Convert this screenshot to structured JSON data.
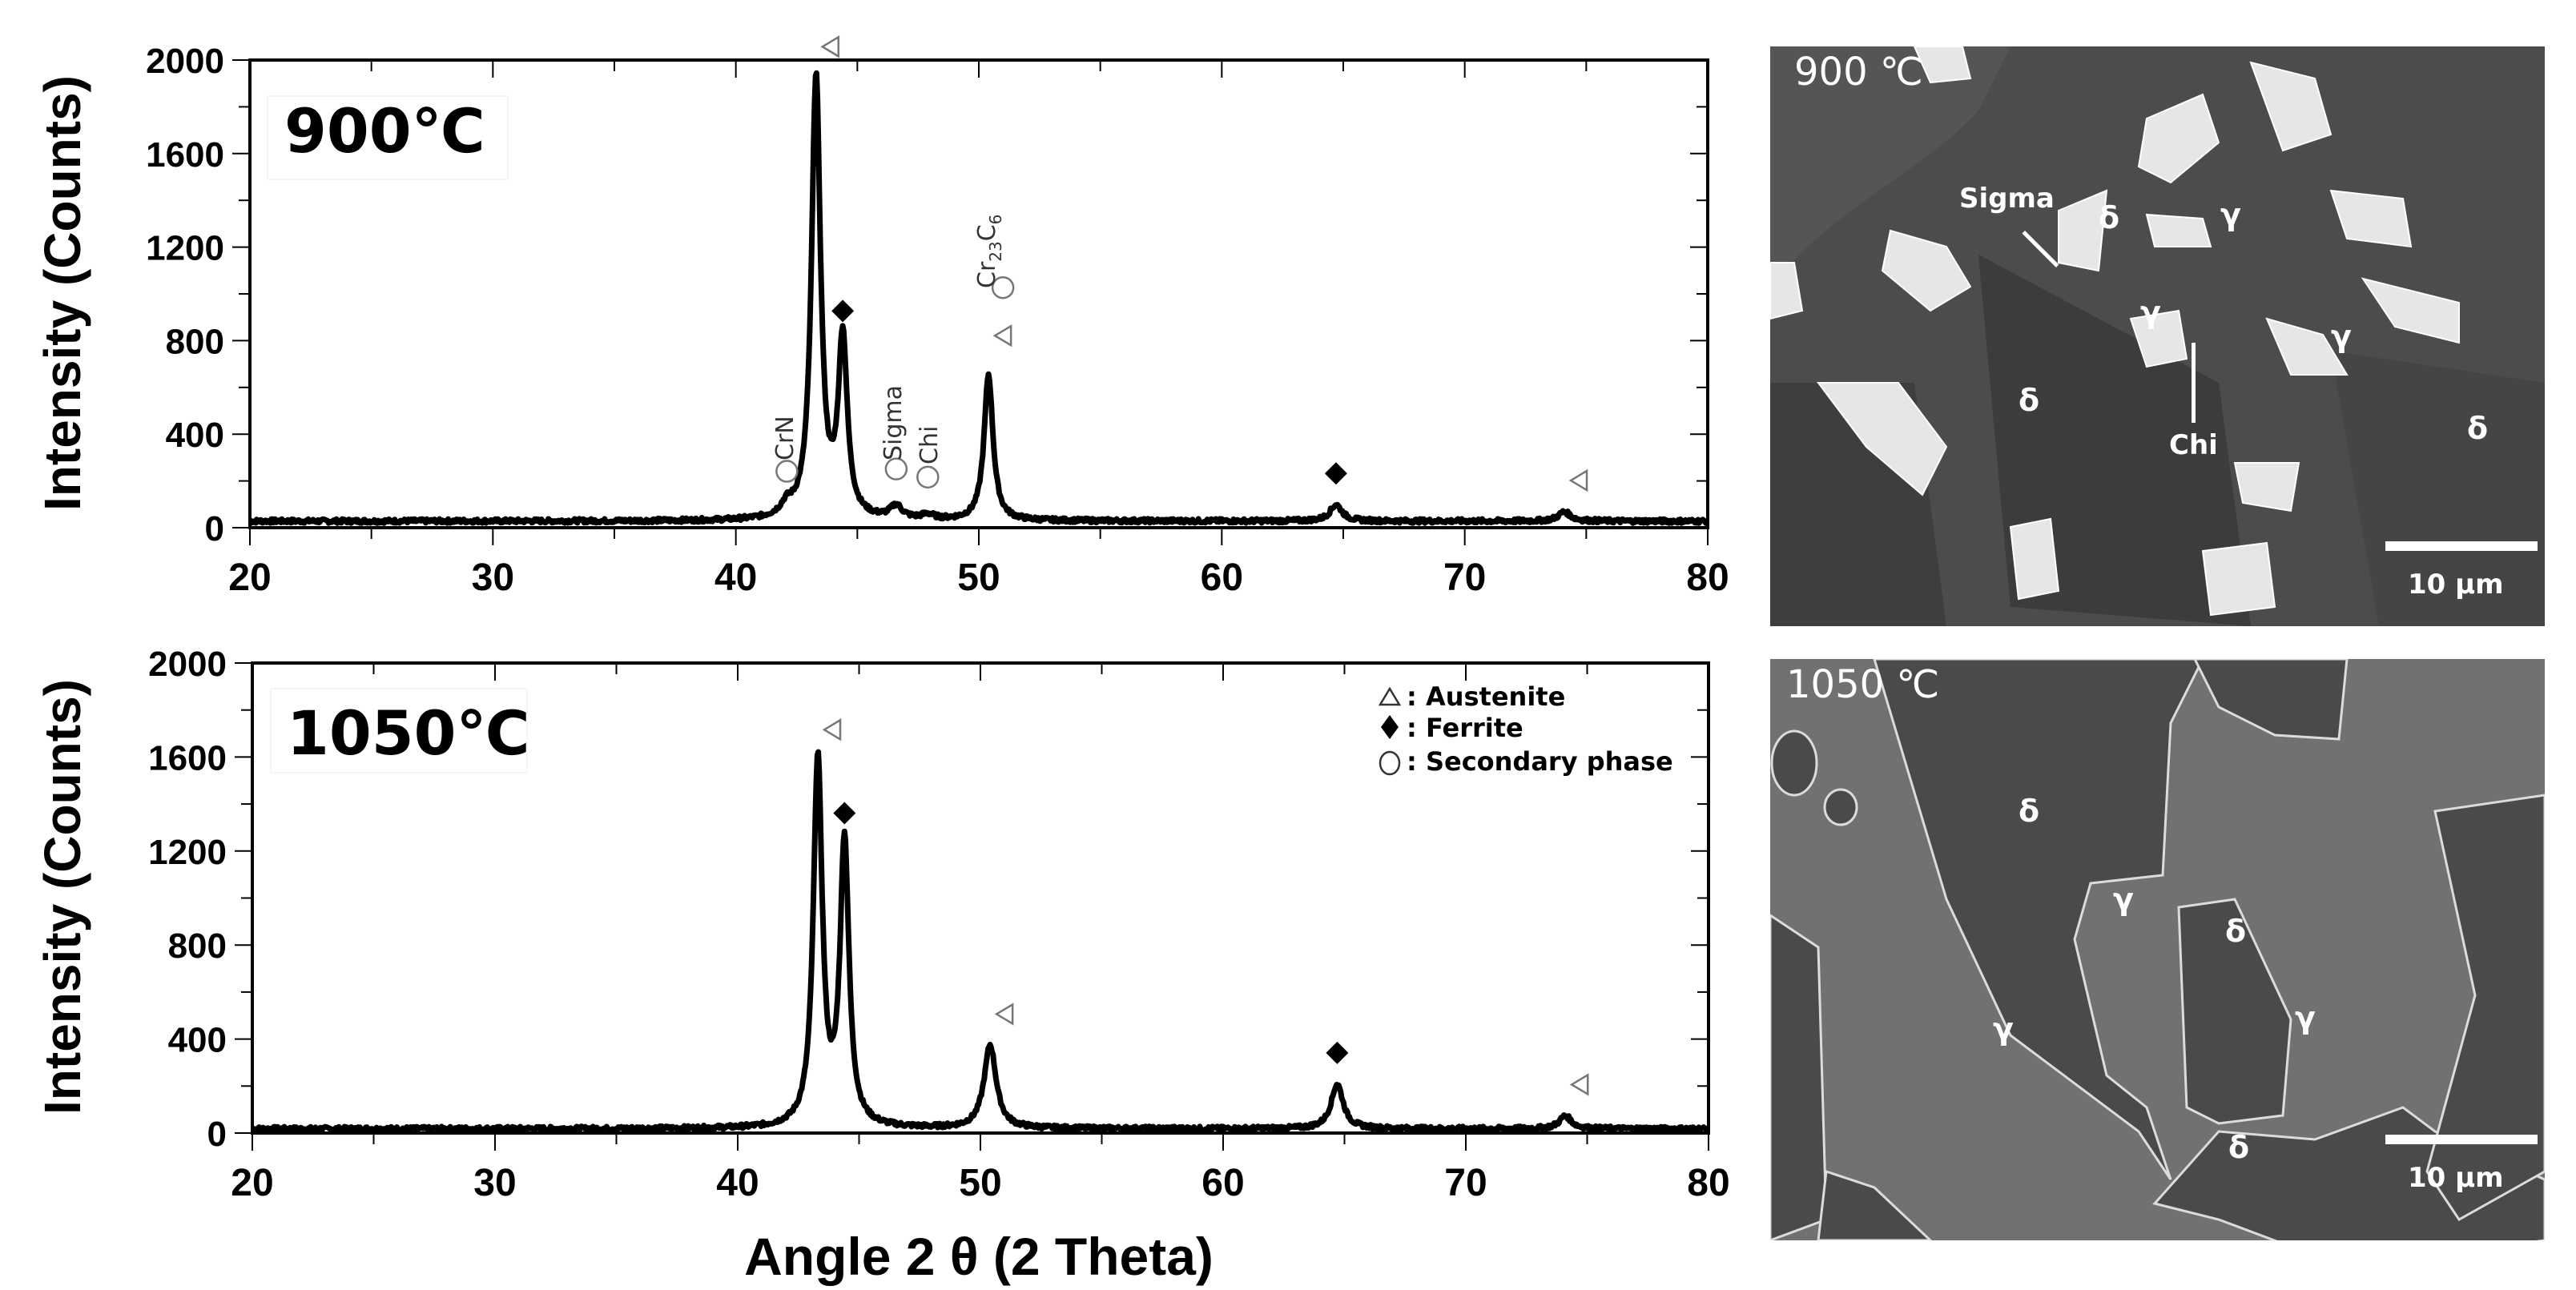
{
  "figure": {
    "x_axis_label": "Angle 2 θ (2 Theta)",
    "y_axis_label": "Intensity (Counts)",
    "legend": [
      {
        "symbol": "open-triangle",
        "label": ": Austenite"
      },
      {
        "symbol": "filled-diamond",
        "label": ": Ferrite"
      },
      {
        "symbol": "open-circle",
        "label": ": Secondary phase"
      }
    ]
  },
  "chart_data": [
    {
      "type": "line",
      "title": "900℃",
      "xlabel": "Angle 2 θ (2 Theta)",
      "ylabel": "Intensity (Counts)",
      "xlim": [
        20,
        80
      ],
      "ylim": [
        0,
        2000
      ],
      "x_ticks": [
        20,
        30,
        40,
        50,
        60,
        70,
        80
      ],
      "y_ticks": [
        0,
        400,
        800,
        1200,
        1600,
        2000
      ],
      "grid": false,
      "baseline": 25,
      "peaks": [
        {
          "x": 42.1,
          "y": 70,
          "phase": "secondary",
          "label": "CrN"
        },
        {
          "x": 43.3,
          "y": 1920,
          "phase": "austenite"
        },
        {
          "x": 44.4,
          "y": 790,
          "phase": "ferrite"
        },
        {
          "x": 46.6,
          "y": 80,
          "phase": "secondary",
          "label": "Sigma"
        },
        {
          "x": 47.9,
          "y": 45,
          "phase": "secondary",
          "label": "Chi"
        },
        {
          "x": 50.4,
          "y": 650,
          "phase": "austenite, secondary",
          "label": "Cr23C6"
        },
        {
          "x": 64.7,
          "y": 95,
          "phase": "ferrite"
        },
        {
          "x": 74.1,
          "y": 65,
          "phase": "austenite"
        }
      ],
      "annotations": [
        "CrN",
        "Sigma",
        "Chi",
        "Cr23C6"
      ]
    },
    {
      "type": "line",
      "title": "1050℃",
      "xlabel": "Angle 2 θ (2 Theta)",
      "ylabel": "Intensity (Counts)",
      "xlim": [
        20,
        80
      ],
      "ylim": [
        0,
        2000
      ],
      "x_ticks": [
        20,
        30,
        40,
        50,
        60,
        70,
        80
      ],
      "y_ticks": [
        0,
        400,
        800,
        1200,
        1600,
        2000
      ],
      "grid": false,
      "baseline": 15,
      "peaks": [
        {
          "x": 43.3,
          "y": 1580,
          "phase": "austenite"
        },
        {
          "x": 44.4,
          "y": 1225,
          "phase": "ferrite"
        },
        {
          "x": 50.4,
          "y": 370,
          "phase": "austenite"
        },
        {
          "x": 64.7,
          "y": 205,
          "phase": "ferrite"
        },
        {
          "x": 74.1,
          "y": 70,
          "phase": "austenite"
        }
      ],
      "legend": [
        "Austenite",
        "Ferrite",
        "Secondary phase"
      ],
      "legend_position": "upper right"
    }
  ],
  "charts": {
    "top": {
      "title": "900℃",
      "ann_crn": "CrN",
      "ann_sigma": "Sigma",
      "ann_chi": "Chi",
      "ann_cr": "Cr",
      "ann_cr_sub1": "23",
      "ann_cr_c": "C",
      "ann_cr_sub2": "6"
    },
    "bottom": {
      "title": "1050℃"
    },
    "x_ticks": [
      "20",
      "30",
      "40",
      "50",
      "60",
      "70",
      "80"
    ],
    "y_ticks": [
      "0",
      "400",
      "800",
      "1200",
      "1600",
      "2000"
    ]
  },
  "sem": {
    "top": {
      "title": "900 ℃",
      "labels": [
        "Sigma",
        "δ",
        "γ",
        "γ",
        "γ",
        "δ",
        "δ",
        "Chi"
      ],
      "scale": "10 µm"
    },
    "bottom": {
      "title": "1050 ℃",
      "labels": [
        "δ",
        "γ",
        "δ",
        "γ",
        "γ",
        "δ"
      ],
      "scale": "10 µm"
    }
  },
  "colors": {
    "line": "#000000",
    "marker_open": "#777777",
    "sem_top_bg": "#4a4a4a",
    "sem_bottom_bg": "#6d6d6d"
  }
}
